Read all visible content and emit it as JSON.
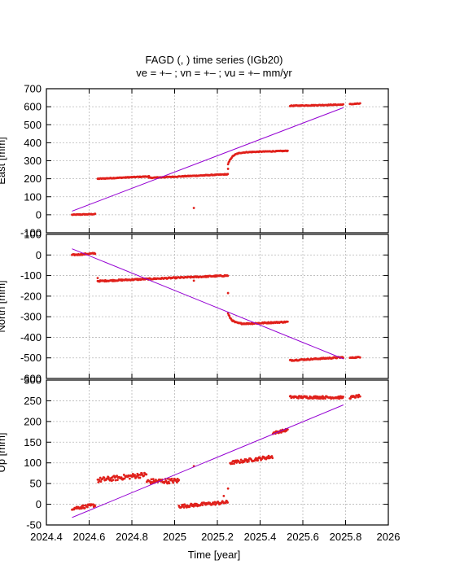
{
  "chart_data": {
    "type": "scatter",
    "title": "FAGD (, ) time series (IGb20)",
    "subtitle": "ve =  +– ; vn =  +– ; vu =  +–  mm/yr",
    "xlabel": "Time [year]",
    "xlim": [
      2024.4,
      2026.0
    ],
    "xticks": [
      "2024.4",
      "2024.6",
      "2024.8",
      "2025",
      "2025.2",
      "2025.4",
      "2025.6",
      "2025.8",
      "2026"
    ],
    "grid": true,
    "series_colors": {
      "points": "#e0201b",
      "trend": "#9400d3"
    },
    "panels": [
      {
        "name": "east",
        "ylabel": "East [mm]",
        "ylim": [
          -100,
          700
        ],
        "yticks": [
          "-100",
          "0",
          "100",
          "200",
          "300",
          "400",
          "500",
          "600",
          "700"
        ],
        "trend": {
          "x": [
            2024.52,
            2025.79
          ],
          "y": [
            20,
            595
          ]
        },
        "segments": [
          {
            "x0": 2024.52,
            "x1": 2024.63,
            "y0": 0,
            "y1": 4,
            "noise": 2,
            "step": 0.003
          },
          {
            "x0": 2024.64,
            "x1": 2024.88,
            "y0": 200,
            "y1": 213,
            "noise": 2,
            "step": 0.003
          },
          {
            "x0": 2024.88,
            "x1": 2025.25,
            "y0": 205,
            "y1": 225,
            "noise": 2,
            "step": 0.003
          },
          {
            "x0": 2025.25,
            "x1": 2025.53,
            "y0": 345,
            "y1": 355,
            "noise": 2,
            "step": 0.003,
            "decay": {
              "start": 280,
              "tau": 0.02
            }
          },
          {
            "x0": 2025.54,
            "x1": 2025.79,
            "y0": 605,
            "y1": 612,
            "noise": 2,
            "step": 0.003
          },
          {
            "x0": 2025.82,
            "x1": 2025.87,
            "y0": 614,
            "y1": 618,
            "noise": 2,
            "step": 0.003
          }
        ],
        "extra_points": [
          {
            "x": 2025.09,
            "y": 38
          },
          {
            "x": 2025.25,
            "y": 255
          }
        ]
      },
      {
        "name": "north",
        "ylabel": "North [mm]",
        "ylim": [
          -600,
          100
        ],
        "yticks": [
          "-600",
          "-500",
          "-400",
          "-300",
          "-200",
          "-100",
          "0",
          "100"
        ],
        "trend": {
          "x": [
            2024.52,
            2025.79
          ],
          "y": [
            30,
            -505
          ]
        },
        "segments": [
          {
            "x0": 2024.52,
            "x1": 2024.63,
            "y0": 0,
            "y1": 8,
            "noise": 3,
            "step": 0.003
          },
          {
            "x0": 2024.64,
            "x1": 2025.25,
            "y0": -127,
            "y1": -100,
            "noise": 3,
            "step": 0.003
          },
          {
            "x0": 2025.25,
            "x1": 2025.53,
            "y0": -338,
            "y1": -325,
            "noise": 3,
            "step": 0.003,
            "decay": {
              "start": -285,
              "tau": 0.02
            }
          },
          {
            "x0": 2025.54,
            "x1": 2025.79,
            "y0": -512,
            "y1": -497,
            "noise": 3,
            "step": 0.003
          },
          {
            "x0": 2025.82,
            "x1": 2025.87,
            "y0": -500,
            "y1": -496,
            "noise": 2,
            "step": 0.003
          }
        ],
        "extra_points": [
          {
            "x": 2025.25,
            "y": -185
          },
          {
            "x": 2025.09,
            "y": -125
          },
          {
            "x": 2024.64,
            "y": -112
          }
        ]
      },
      {
        "name": "up",
        "ylabel": "Up [mm]",
        "ylim": [
          -50,
          300
        ],
        "yticks": [
          "-50",
          "0",
          "50",
          "100",
          "150",
          "200",
          "250",
          "300"
        ],
        "trend": {
          "x": [
            2024.52,
            2025.79
          ],
          "y": [
            -32,
            240
          ]
        },
        "segments": [
          {
            "x0": 2024.52,
            "x1": 2024.63,
            "y0": -10,
            "y1": -2,
            "noise": 4,
            "step": 0.003
          },
          {
            "x0": 2024.64,
            "x1": 2024.87,
            "y0": 58,
            "y1": 72,
            "noise": 6,
            "step": 0.003
          },
          {
            "x0": 2024.87,
            "x1": 2025.02,
            "y0": 55,
            "y1": 57,
            "noise": 6,
            "step": 0.003
          },
          {
            "x0": 2025.02,
            "x1": 2025.25,
            "y0": -5,
            "y1": 5,
            "noise": 4,
            "step": 0.003
          },
          {
            "x0": 2025.26,
            "x1": 2025.46,
            "y0": 100,
            "y1": 115,
            "noise": 4,
            "step": 0.003
          },
          {
            "x0": 2025.46,
            "x1": 2025.53,
            "y0": 172,
            "y1": 180,
            "noise": 3,
            "step": 0.003
          },
          {
            "x0": 2025.54,
            "x1": 2025.79,
            "y0": 259,
            "y1": 258,
            "noise": 3,
            "step": 0.003
          },
          {
            "x0": 2025.82,
            "x1": 2025.87,
            "y0": 258,
            "y1": 262,
            "noise": 3,
            "step": 0.003
          }
        ],
        "extra_points": [
          {
            "x": 2025.09,
            "y": 92
          },
          {
            "x": 2025.25,
            "y": 38
          },
          {
            "x": 2025.23,
            "y": 20
          }
        ]
      }
    ]
  }
}
